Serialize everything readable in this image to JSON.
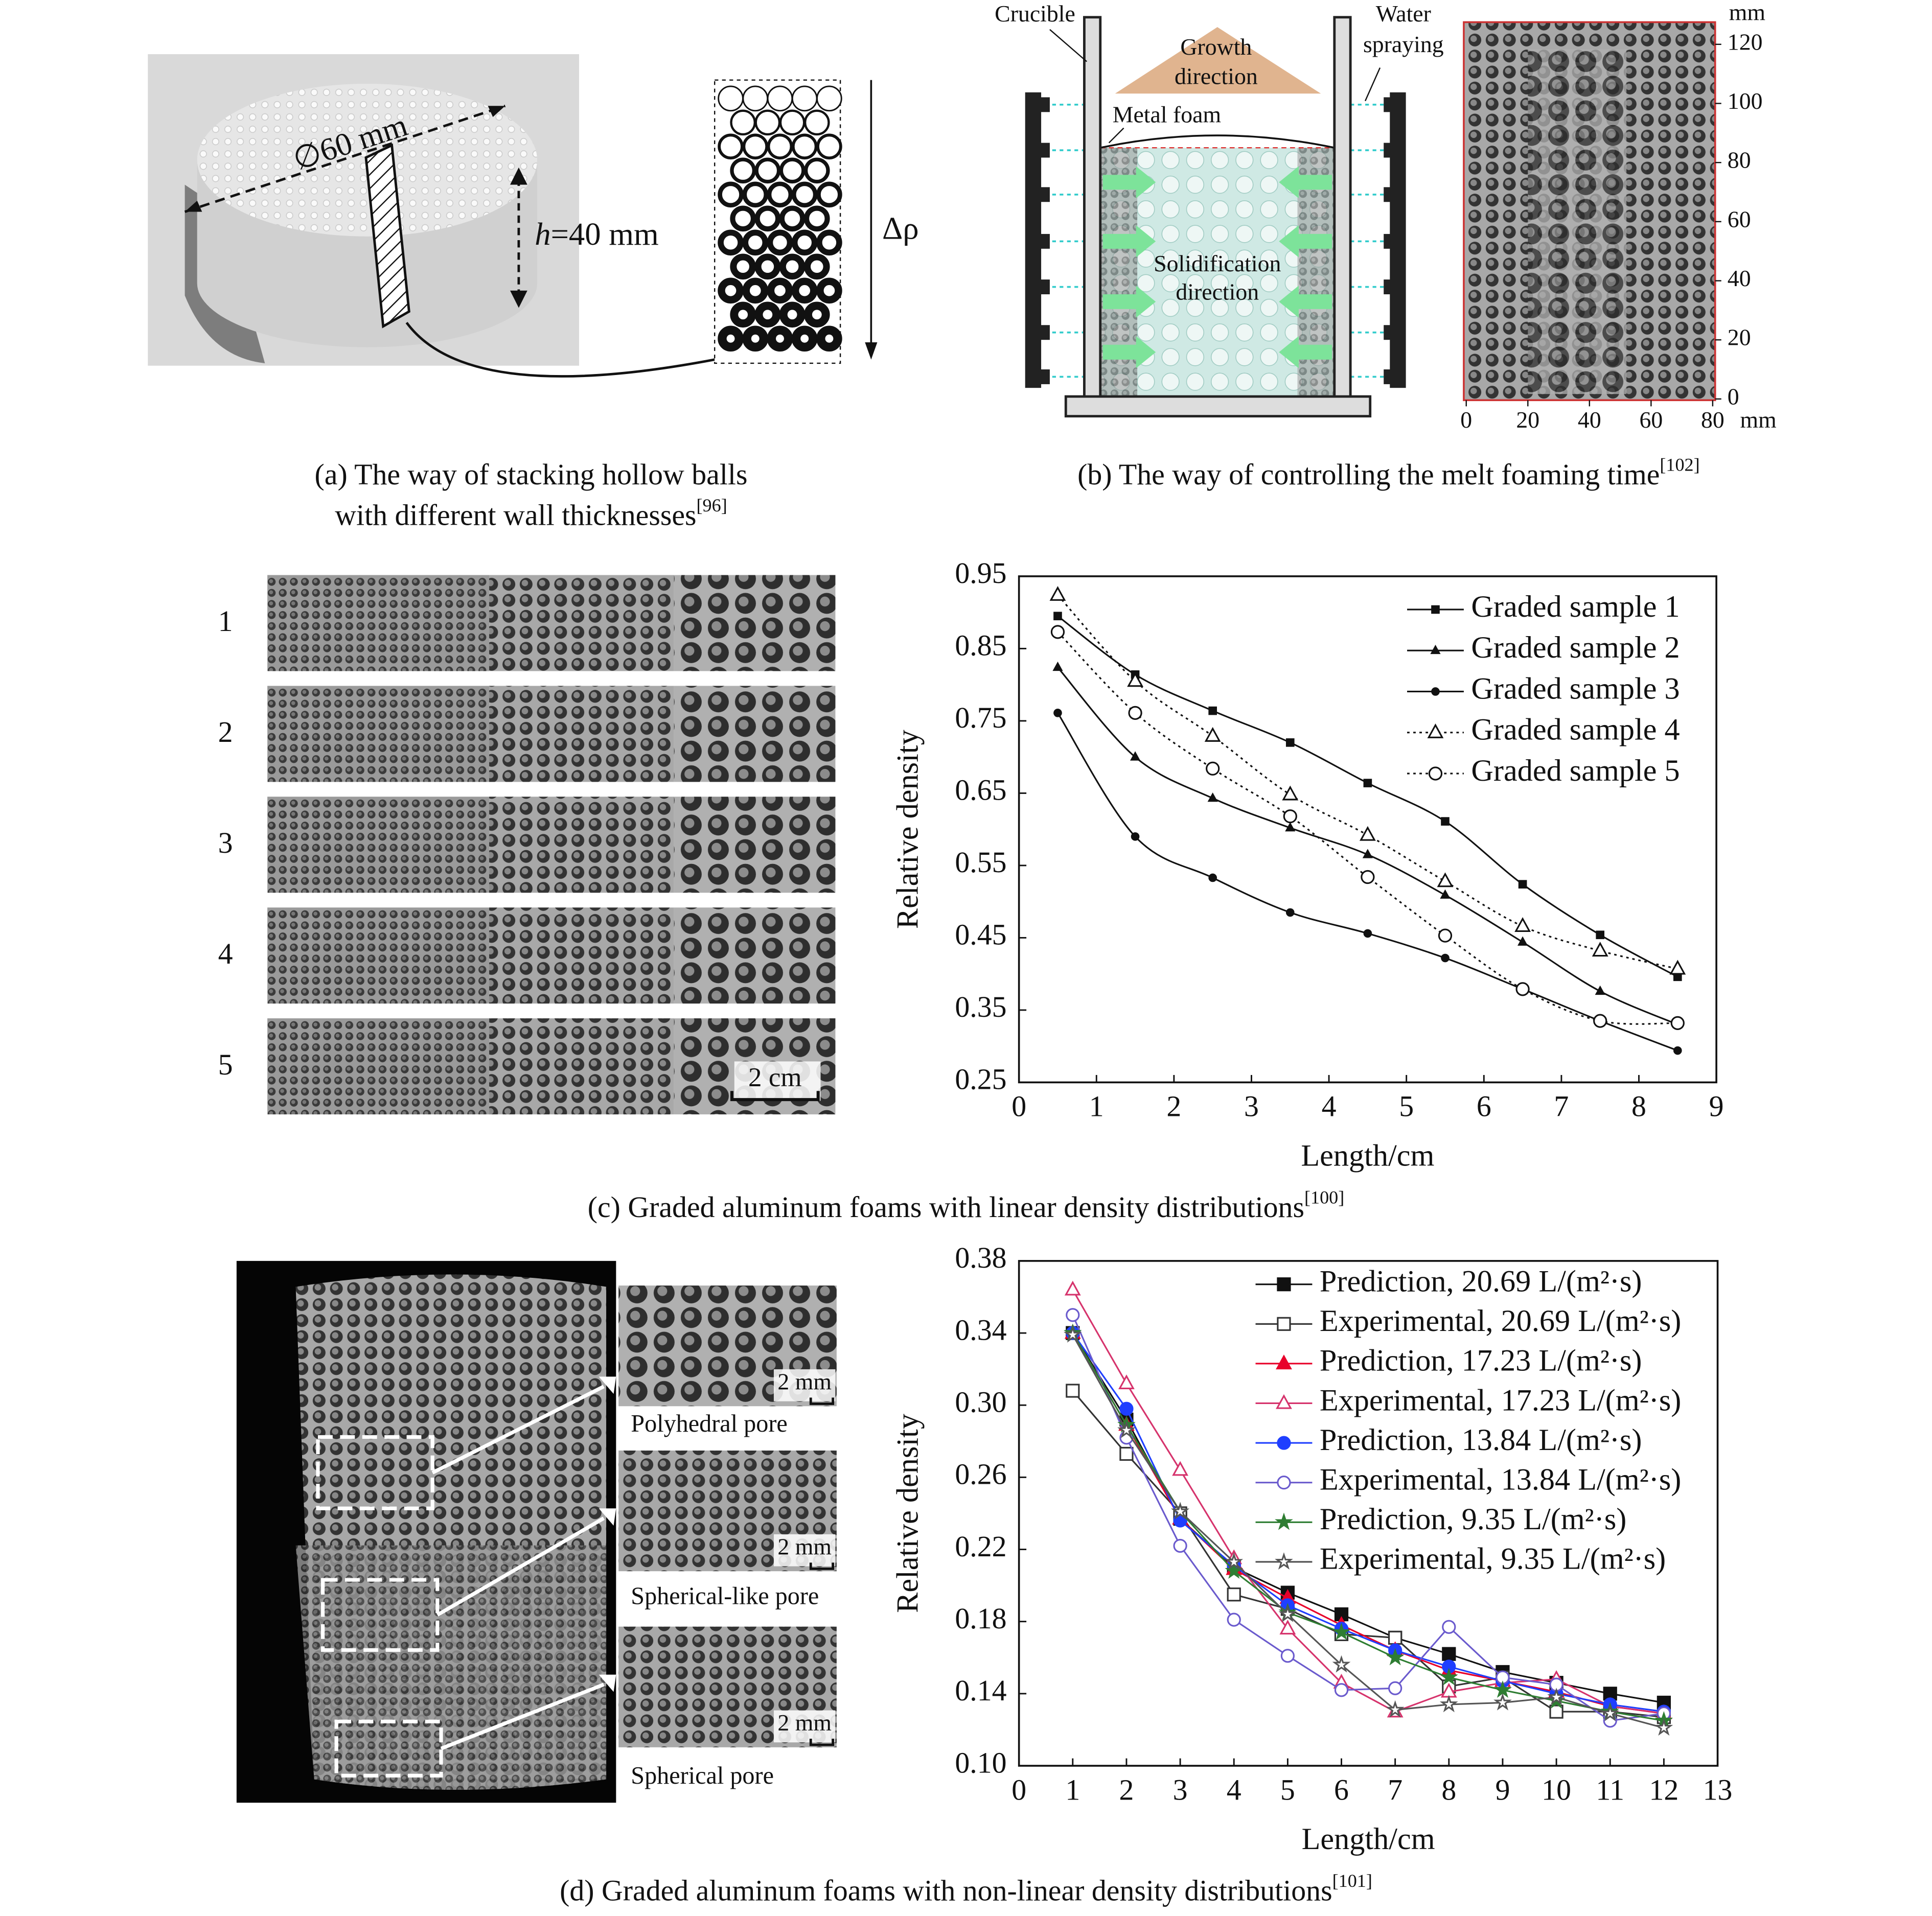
{
  "panel_a": {
    "diameter_label": "∅60 mm",
    "height_label": {
      "var": "h",
      "text": "=40 mm"
    },
    "density_label": "Δρ",
    "caption": {
      "lines": [
        "(a) The way of stacking hollow balls",
        "with different wall thicknesses"
      ],
      "ref": "[96]"
    }
  },
  "panel_b": {
    "crucible": "Crucible",
    "water_spraying": [
      "Water",
      "spraying"
    ],
    "growth_direction": [
      "Growth",
      "direction"
    ],
    "metal_foam": "Metal foam",
    "solidification_direction": [
      "Solidification",
      "direction"
    ],
    "image_axes": {
      "y_unit": "mm",
      "ylim": [
        0,
        120
      ],
      "yticks": [
        0,
        20,
        40,
        60,
        80,
        100,
        120
      ],
      "x_unit": "mm",
      "xlim": [
        0,
        80
      ],
      "xticks": [
        0,
        20,
        40,
        60,
        80
      ]
    },
    "caption": {
      "lines": [
        "(b) The way of controlling the melt foaming time"
      ],
      "ref": "[102]"
    }
  },
  "panel_c": {
    "sample_labels": [
      "1",
      "2",
      "3",
      "4",
      "5"
    ],
    "scale_bar": "2 cm",
    "caption": {
      "lines": [
        "(c) Graded aluminum foams with linear density distributions"
      ],
      "ref": "[100]"
    }
  },
  "panel_d": {
    "regions": [
      {
        "scale_bar": "2 mm",
        "label": "Polyhedral pore"
      },
      {
        "scale_bar": "2 mm",
        "label": "Spherical-like pore"
      },
      {
        "scale_bar": "2 mm",
        "label": "Spherical pore"
      }
    ],
    "caption": {
      "lines": [
        "(d) Graded aluminum foams with non-linear density distributions"
      ],
      "ref": "[101]"
    }
  },
  "chart_data": [
    {
      "type": "line",
      "curve": "smooth",
      "x_label": "Length/cm",
      "y_label": "Relative density",
      "xlim": [
        0,
        9
      ],
      "xticks": [
        0,
        1,
        2,
        3,
        4,
        5,
        6,
        7,
        8,
        9
      ],
      "ylim": [
        0.25,
        0.95
      ],
      "yticks": [
        0.25,
        0.35,
        0.45,
        0.55,
        0.65,
        0.75,
        0.85,
        0.95
      ],
      "legend": "upper right",
      "x": [
        0.5,
        1.5,
        2.5,
        3.5,
        4.5,
        5.5,
        6.5,
        7.5,
        8.5
      ],
      "series": [
        {
          "name": "Graded sample 1",
          "color": "#111111",
          "marker": "square",
          "filled": true,
          "dash": "solid",
          "values": [
            0.895,
            0.814,
            0.764,
            0.72,
            0.664,
            0.611,
            0.524,
            0.454,
            0.396
          ]
        },
        {
          "name": "Graded sample 2",
          "color": "#111111",
          "marker": "triangle",
          "filled": true,
          "dash": "solid",
          "values": [
            0.824,
            0.7,
            0.643,
            0.602,
            0.565,
            0.509,
            0.444,
            0.376,
            0.33
          ]
        },
        {
          "name": "Graded sample 3",
          "color": "#111111",
          "marker": "circle",
          "filled": true,
          "dash": "solid",
          "values": [
            0.761,
            0.59,
            0.533,
            0.485,
            0.456,
            0.422,
            0.379,
            0.335,
            0.294
          ]
        },
        {
          "name": "Graded sample 4",
          "color": "#111111",
          "marker": "triangle",
          "filled": false,
          "dash": "dotted",
          "values": [
            0.924,
            0.805,
            0.729,
            0.648,
            0.592,
            0.528,
            0.466,
            0.432,
            0.407
          ]
        },
        {
          "name": "Graded sample 5",
          "color": "#111111",
          "marker": "circle",
          "filled": false,
          "dash": "dotted",
          "values": [
            0.873,
            0.761,
            0.684,
            0.618,
            0.534,
            0.453,
            0.379,
            0.335,
            0.332
          ]
        }
      ]
    },
    {
      "type": "line",
      "curve": "linear",
      "x_label": "Length/cm",
      "y_label": "Relative density",
      "xlim": [
        0,
        13
      ],
      "xticks": [
        0,
        1,
        2,
        3,
        4,
        5,
        6,
        7,
        8,
        9,
        10,
        11,
        12,
        13
      ],
      "ylim": [
        0.1,
        0.38
      ],
      "yticks": [
        {
          "value": 0.1,
          "label": "0.10"
        },
        0.14,
        0.18,
        0.22,
        0.26,
        {
          "value": 0.3,
          "label": "0.30"
        },
        0.34,
        0.38
      ],
      "legend": "upper right",
      "x": [
        1,
        2,
        3,
        4,
        5,
        6,
        7,
        8,
        9,
        10,
        11,
        12
      ],
      "series": [
        {
          "name": "Prediction, 20.69 L/(m²·s)",
          "color": "#111111",
          "marker": "square",
          "filled": true,
          "dash": "solid",
          "values": [
            0.34,
            0.292,
            0.237,
            0.21,
            0.196,
            0.184,
            0.171,
            0.162,
            0.152,
            0.146,
            0.14,
            0.135
          ]
        },
        {
          "name": "Experimental, 20.69 L/(m²·s)",
          "color": "#333333",
          "marker": "square",
          "filled": false,
          "dash": "solid",
          "values": [
            0.308,
            0.273,
            0.24,
            0.195,
            0.187,
            0.173,
            0.171,
            0.144,
            0.149,
            0.13,
            0.13,
            0.127
          ]
        },
        {
          "name": "Prediction, 17.23 L/(m²·s)",
          "color": "#e8002a",
          "marker": "triangle",
          "filled": true,
          "dash": "solid",
          "values": [
            0.34,
            0.289,
            0.237,
            0.209,
            0.193,
            0.178,
            0.164,
            0.153,
            0.147,
            0.141,
            0.133,
            0.129
          ]
        },
        {
          "name": "Experimental, 17.23 L/(m²·s)",
          "color": "#d6336c",
          "marker": "triangle",
          "filled": false,
          "dash": "solid",
          "values": [
            0.364,
            0.312,
            0.264,
            0.215,
            0.176,
            0.146,
            0.13,
            0.141,
            0.146,
            0.148,
            0.133,
            0.129
          ]
        },
        {
          "name": "Prediction, 13.84 L/(m²·s)",
          "color": "#1f3fff",
          "marker": "circle",
          "filled": true,
          "dash": "solid",
          "values": [
            0.34,
            0.298,
            0.236,
            0.211,
            0.189,
            0.176,
            0.164,
            0.155,
            0.147,
            0.14,
            0.134,
            0.13
          ]
        },
        {
          "name": "Experimental, 13.84 L/(m²·s)",
          "color": "#6a5acd",
          "marker": "circle",
          "filled": false,
          "dash": "solid",
          "values": [
            0.35,
            0.282,
            0.222,
            0.181,
            0.161,
            0.142,
            0.143,
            0.177,
            0.149,
            0.145,
            0.125,
            0.129
          ]
        },
        {
          "name": "Prediction, 9.35 L/(m²·s)",
          "color": "#2e7d32",
          "marker": "star",
          "filled": true,
          "dash": "solid",
          "values": [
            0.34,
            0.289,
            0.241,
            0.208,
            0.185,
            0.174,
            0.16,
            0.149,
            0.142,
            0.136,
            0.13,
            0.125
          ]
        },
        {
          "name": "Experimental, 9.35 L/(m²·s)",
          "color": "#555555",
          "marker": "star",
          "filled": false,
          "dash": "solid",
          "values": [
            0.339,
            0.286,
            0.241,
            0.213,
            0.184,
            0.156,
            0.131,
            0.134,
            0.135,
            0.138,
            0.129,
            0.121
          ]
        }
      ]
    }
  ]
}
